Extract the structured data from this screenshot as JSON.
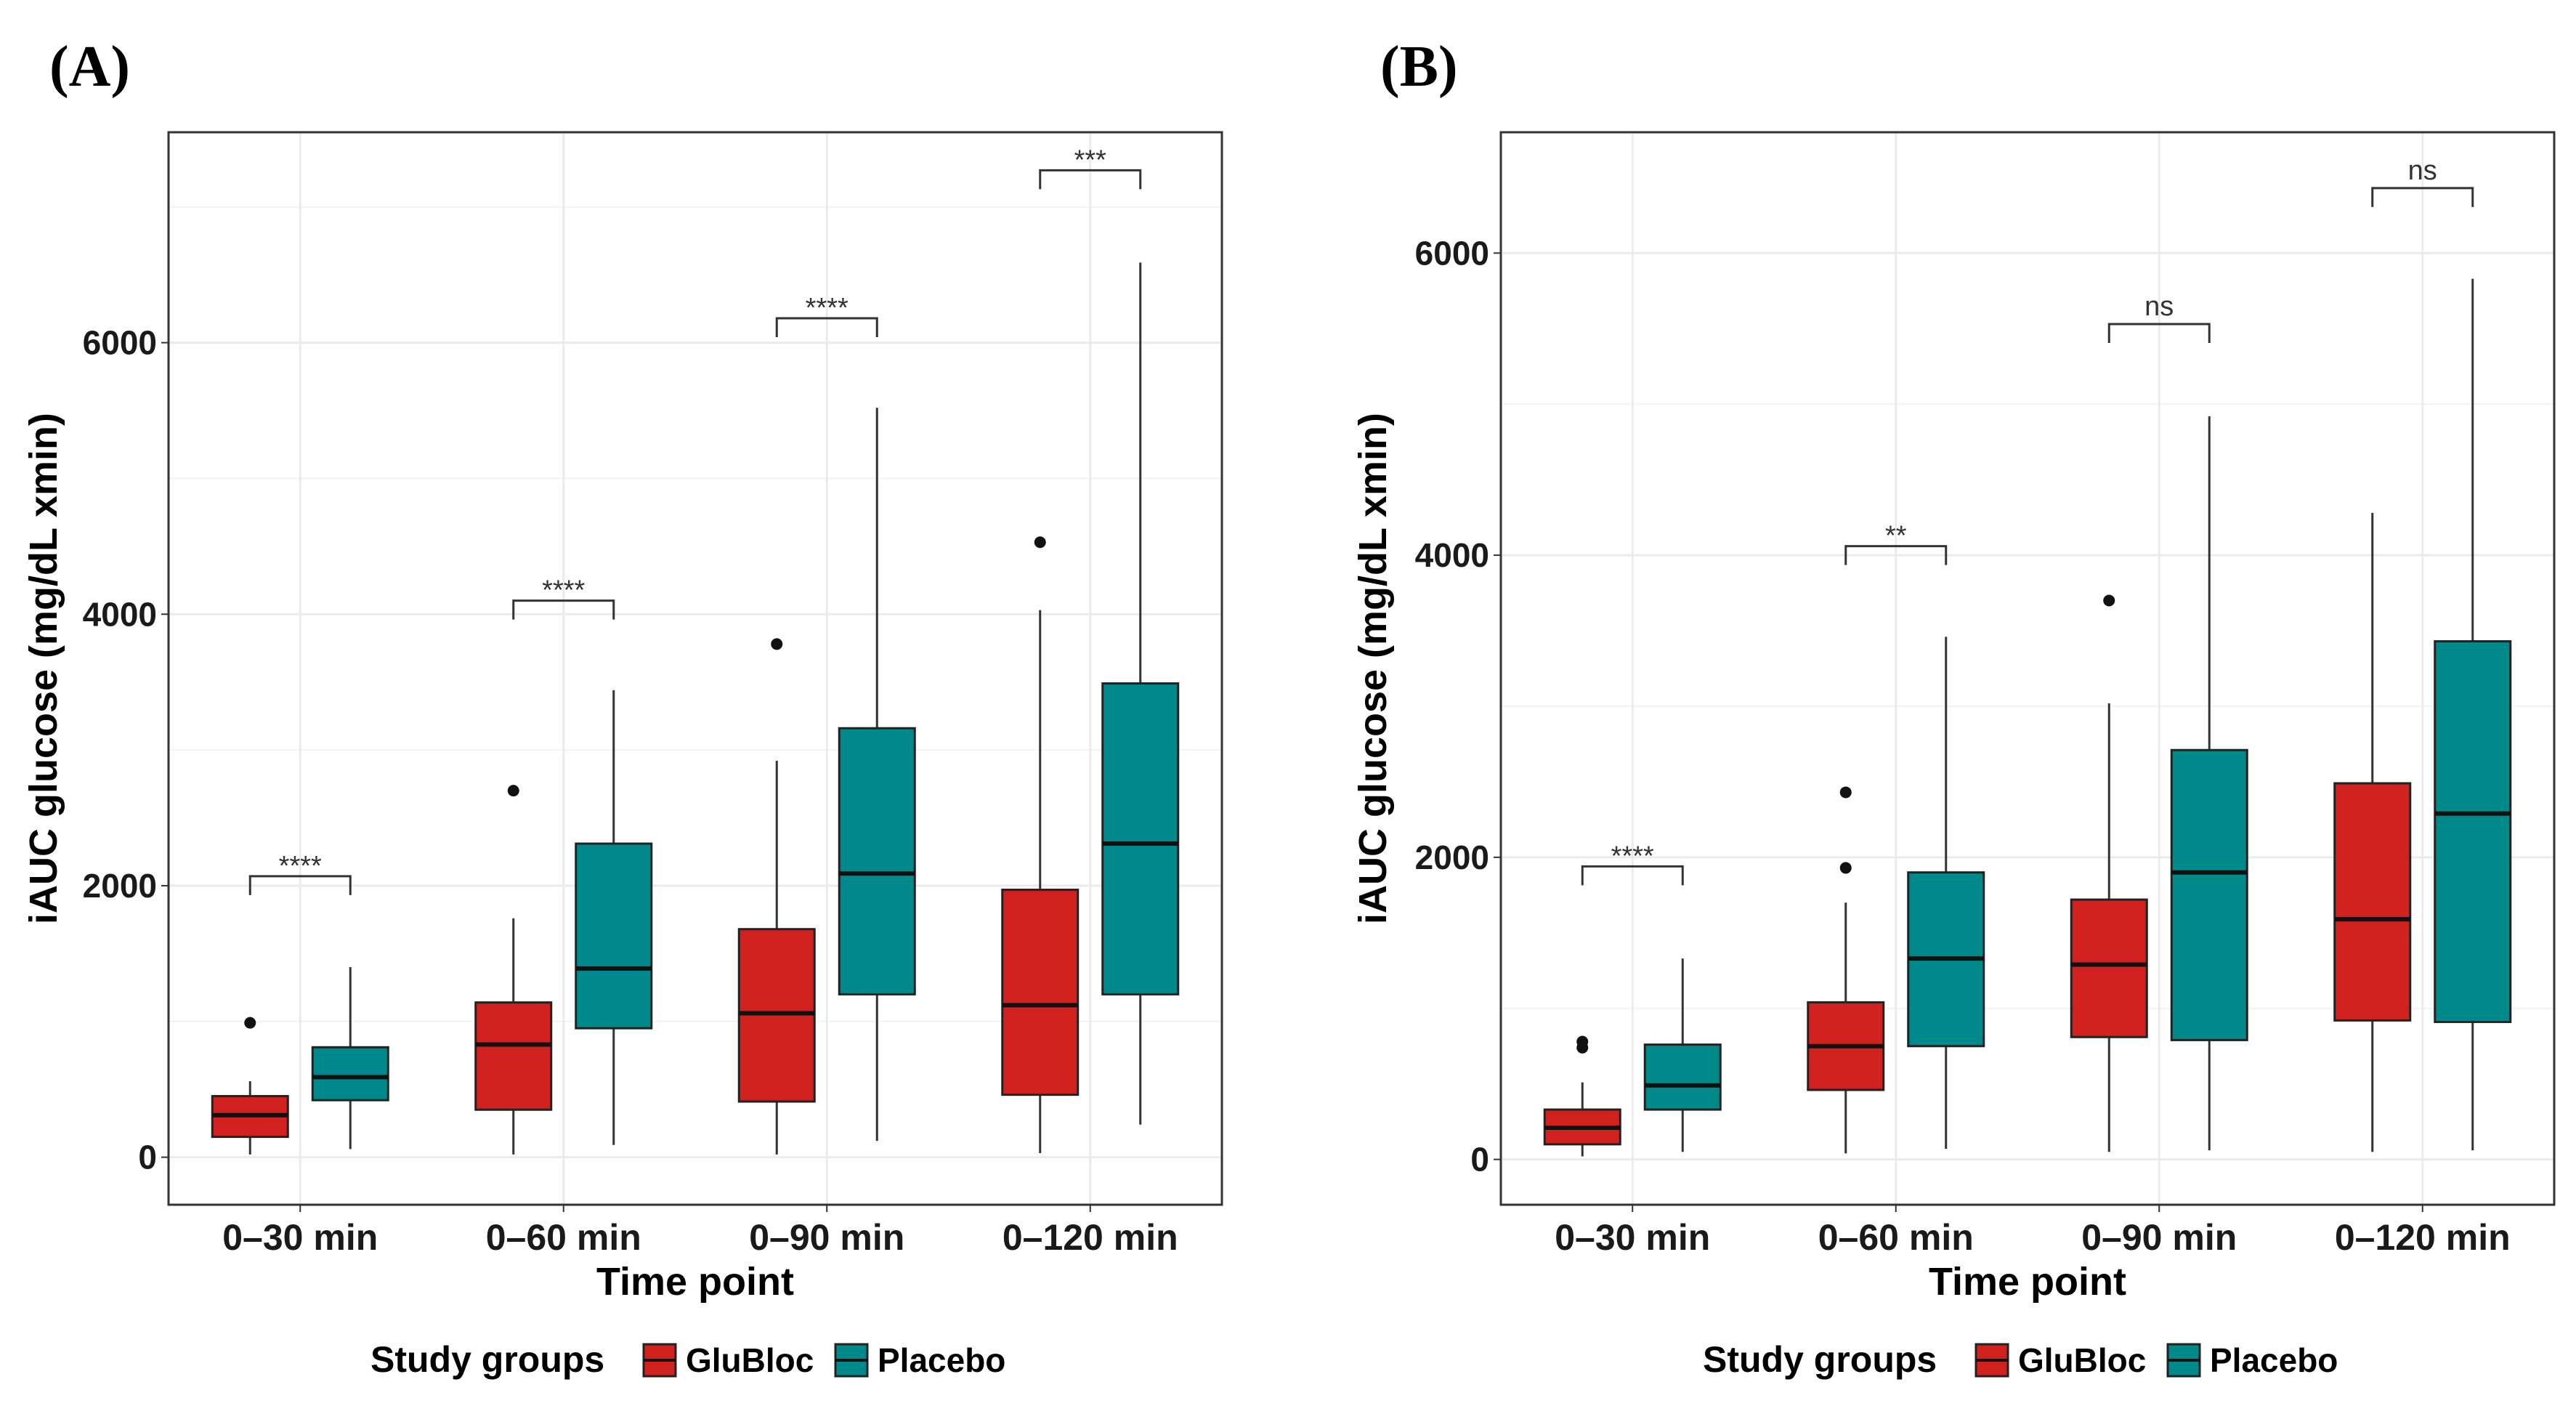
{
  "colors": {
    "GluBloc": "#d0211f",
    "Placebo": "#00898a",
    "grid": "#ebebeb",
    "frame": "#333333"
  },
  "chart_data": [
    {
      "type": "boxplot",
      "panel_label": "(A)",
      "xlabel": "Time point",
      "ylabel": "iAUC glucose (mg/dL xmin)",
      "ylim": [
        -350,
        7550
      ],
      "ybreaks": [
        0,
        2000,
        4000,
        6000
      ],
      "ytick_labels": [
        "0",
        "2000",
        "4000",
        "6000"
      ],
      "categories": [
        "0–30 min",
        "0–60 min",
        "0–90 min",
        "0–120 min"
      ],
      "series": [
        {
          "name": "GluBloc",
          "boxes": [
            {
              "min": 20,
              "q1": 150,
              "median": 310,
              "q3": 450,
              "max": 560,
              "outliers": [
                990
              ]
            },
            {
              "min": 20,
              "q1": 350,
              "median": 830,
              "q3": 1140,
              "max": 1760,
              "outliers": [
                2700
              ]
            },
            {
              "min": 20,
              "q1": 410,
              "median": 1060,
              "q3": 1680,
              "max": 2920,
              "outliers": [
                3780
              ]
            },
            {
              "min": 30,
              "q1": 460,
              "median": 1120,
              "q3": 1970,
              "max": 4030,
              "outliers": [
                4530
              ]
            }
          ]
        },
        {
          "name": "Placebo",
          "boxes": [
            {
              "min": 60,
              "q1": 420,
              "median": 590,
              "q3": 810,
              "max": 1400,
              "outliers": []
            },
            {
              "min": 90,
              "q1": 950,
              "median": 1390,
              "q3": 2310,
              "max": 3440,
              "outliers": []
            },
            {
              "min": 120,
              "q1": 1200,
              "median": 2090,
              "q3": 3160,
              "max": 5520,
              "outliers": []
            },
            {
              "min": 240,
              "q1": 1200,
              "median": 2310,
              "q3": 3490,
              "max": 6590,
              "outliers": []
            }
          ]
        }
      ],
      "significance": [
        {
          "label": "****",
          "y": 2070
        },
        {
          "label": "****",
          "y": 4100
        },
        {
          "label": "****",
          "y": 6180
        },
        {
          "label": "***",
          "y": 7270
        }
      ],
      "legend": {
        "title": "Study groups",
        "items": [
          "GluBloc",
          "Placebo"
        ],
        "position": "bottom"
      }
    },
    {
      "type": "boxplot",
      "panel_label": "(B)",
      "xlabel": "Time point",
      "ylabel": "iAUC glucose (mg/dL xmin)",
      "ylim": [
        -300,
        6800
      ],
      "ybreaks": [
        0,
        2000,
        4000,
        6000
      ],
      "ytick_labels": [
        "0",
        "2000",
        "4000",
        "6000"
      ],
      "categories": [
        "0–30 min",
        "0–60 min",
        "0–90 min",
        "0–120 min"
      ],
      "series": [
        {
          "name": "GluBloc",
          "boxes": [
            {
              "min": 20,
              "q1": 100,
              "median": 210,
              "q3": 330,
              "max": 510,
              "outliers": [
                740,
                780
              ]
            },
            {
              "min": 40,
              "q1": 460,
              "median": 750,
              "q3": 1040,
              "max": 1700,
              "outliers": [
                1930,
                2430
              ]
            },
            {
              "min": 50,
              "q1": 810,
              "median": 1290,
              "q3": 1720,
              "max": 3020,
              "outliers": [
                3700
              ]
            },
            {
              "min": 50,
              "q1": 920,
              "median": 1590,
              "q3": 2490,
              "max": 4280,
              "outliers": []
            }
          ]
        },
        {
          "name": "Placebo",
          "boxes": [
            {
              "min": 50,
              "q1": 330,
              "median": 490,
              "q3": 760,
              "max": 1330,
              "outliers": []
            },
            {
              "min": 70,
              "q1": 750,
              "median": 1330,
              "q3": 1900,
              "max": 3460,
              "outliers": []
            },
            {
              "min": 60,
              "q1": 790,
              "median": 1900,
              "q3": 2710,
              "max": 4920,
              "outliers": []
            },
            {
              "min": 60,
              "q1": 910,
              "median": 2290,
              "q3": 3430,
              "max": 5830,
              "outliers": []
            }
          ]
        }
      ],
      "significance": [
        {
          "label": "****",
          "y": 1940
        },
        {
          "label": "**",
          "y": 4060
        },
        {
          "label": "ns",
          "y": 5530
        },
        {
          "label": "ns",
          "y": 6430
        }
      ],
      "legend": {
        "title": "Study groups",
        "items": [
          "GluBloc",
          "Placebo"
        ],
        "position": "bottom"
      }
    }
  ]
}
